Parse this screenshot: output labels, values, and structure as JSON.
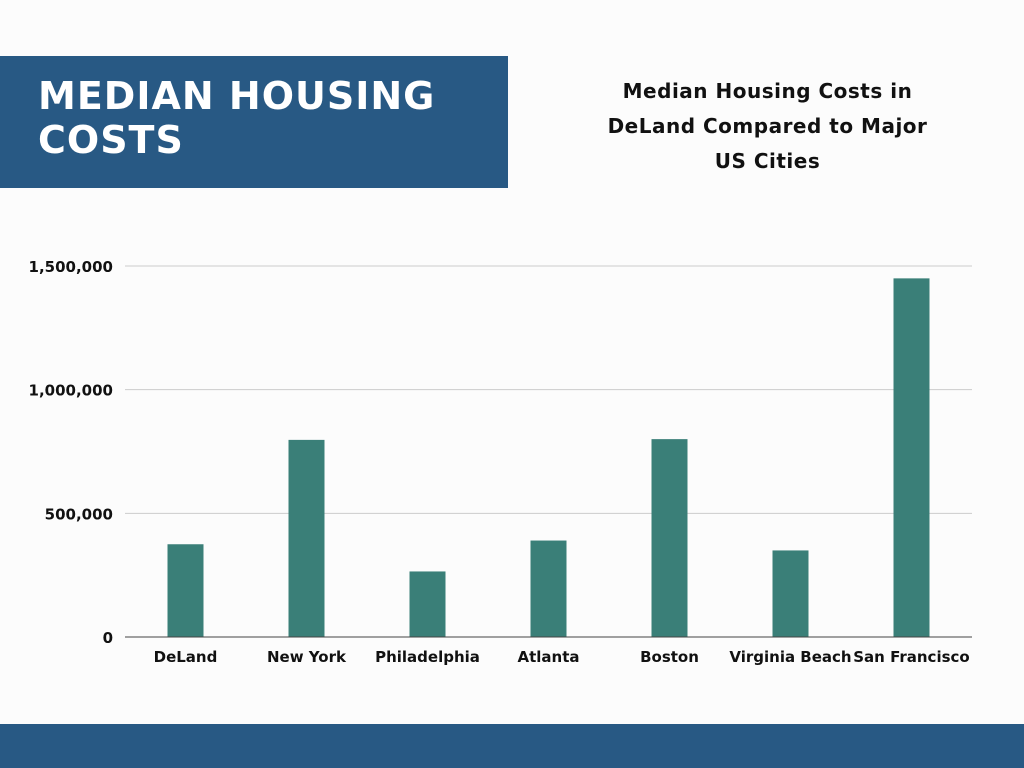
{
  "header": {
    "title": "MEDIAN HOUSING COSTS"
  },
  "colors": {
    "banner": "#285984",
    "bar": "#3a7f78",
    "grid": "#cccccc",
    "axis": "#444444"
  },
  "chart_data": {
    "type": "bar",
    "title": "Median Housing Costs in DeLand Compared to Major US Cities",
    "categories": [
      "DeLand",
      "New York",
      "Philadelphia",
      "Atlanta",
      "Boston",
      "Virginia Beach",
      "San Francisco"
    ],
    "values": [
      375000,
      797000,
      265000,
      390000,
      800000,
      350000,
      1450000
    ],
    "xlabel": "",
    "ylabel": "",
    "ylim": [
      0,
      1500000
    ],
    "yticks": [
      0,
      500000,
      1000000,
      1500000
    ],
    "ytick_labels": [
      "0",
      "500,000",
      "1,000,000",
      "1,500,000"
    ],
    "grid": true,
    "legend": "none"
  }
}
